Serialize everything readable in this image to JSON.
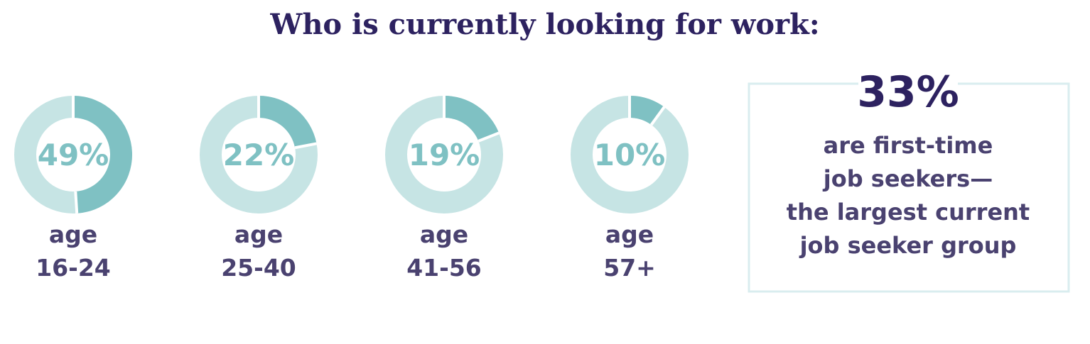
{
  "chart_data": {
    "type": "donut",
    "title": "Who is currently looking for work:",
    "categories": [
      [
        "age",
        "16-24"
      ],
      [
        "age",
        "25-40"
      ],
      [
        "age",
        "41-56"
      ],
      [
        "age",
        "57+"
      ]
    ],
    "values": [
      49,
      22,
      19,
      10
    ],
    "value_labels": [
      "49%",
      "22%",
      "19%",
      "10%"
    ],
    "color": "#7fc1c3",
    "track_color": "#c6e4e4"
  },
  "callout": {
    "value": 33,
    "value_label": "33%",
    "lines": [
      "are first-time",
      "job seekers—",
      "the largest current",
      "job seeker group"
    ]
  }
}
